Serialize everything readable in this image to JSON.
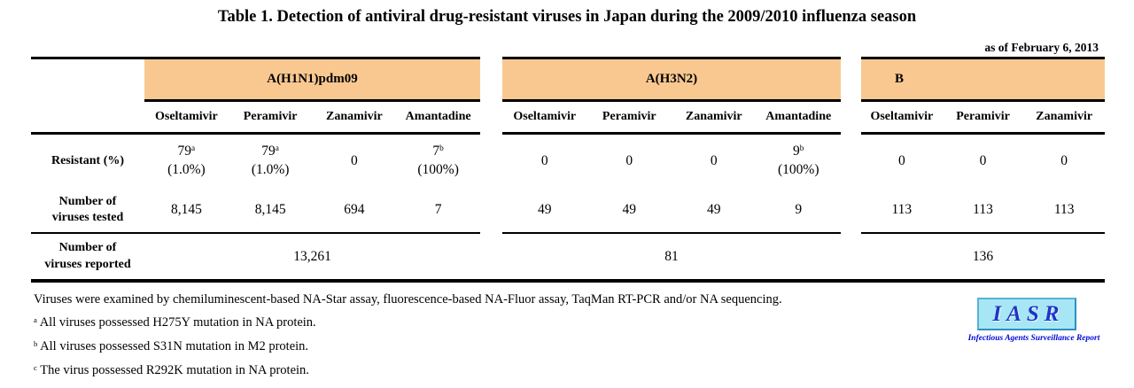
{
  "title": "Table 1. Detection of antiviral drug-resistant viruses in Japan during the 2009/2010 influenza season",
  "as_of": "as of February 6, 2013",
  "colors": {
    "band_orange": "#F9C890",
    "logo_box": "#A7E7F5",
    "logo_blue": "#2233C4"
  },
  "stub": {
    "resistant": "Resistant (%)",
    "tested_line1": "Number of",
    "tested_line2": "viruses tested",
    "reported_line1": "Number of",
    "reported_line2": "viruses reported"
  },
  "groups": [
    {
      "name": "A(H1N1)pdm09",
      "drugs": [
        "Oseltamivir",
        "Peramivir",
        "Zanamivir",
        "Amantadine"
      ],
      "resistant": [
        {
          "main": "79",
          "sup": "a",
          "pct": "(1.0%)"
        },
        {
          "main": "79",
          "sup": "a",
          "pct": "(1.0%)"
        },
        {
          "main": "0",
          "sup": "",
          "pct": ""
        },
        {
          "main": "7",
          "sup": "b",
          "pct": "(100%)"
        }
      ],
      "tested": [
        "8,145",
        "8,145",
        "694",
        "7"
      ],
      "reported": "13,261"
    },
    {
      "name": "A(H3N2)",
      "drugs": [
        "Oseltamivir",
        "Peramivir",
        "Zanamivir",
        "Amantadine"
      ],
      "resistant": [
        {
          "main": "0",
          "sup": "",
          "pct": ""
        },
        {
          "main": "0",
          "sup": "",
          "pct": ""
        },
        {
          "main": "0",
          "sup": "",
          "pct": ""
        },
        {
          "main": "9",
          "sup": "b",
          "pct": "(100%)"
        }
      ],
      "tested": [
        "49",
        "49",
        "49",
        "9"
      ],
      "reported": "81"
    },
    {
      "name": "B",
      "drugs": [
        "Oseltamivir",
        "Peramivir",
        "Zanamivir"
      ],
      "resistant": [
        {
          "main": "0",
          "sup": "",
          "pct": ""
        },
        {
          "main": "0",
          "sup": "",
          "pct": ""
        },
        {
          "main": "0",
          "sup": "",
          "pct": ""
        }
      ],
      "tested": [
        "113",
        "113",
        "113"
      ],
      "reported": "136"
    }
  ],
  "footnotes": {
    "method": "Viruses were examined by chemiluminescent-based NA-Star assay, fluorescence-based NA-Fluor assay, TaqMan RT-PCR and/or NA sequencing.",
    "a": {
      "sup": "a",
      "text": "All viruses possessed H275Y mutation in NA protein."
    },
    "b": {
      "sup": "b",
      "text": "All viruses possessed S31N mutation in M2 protein."
    },
    "c": {
      "sup": "c",
      "text": "The virus possessed R292K mutation in NA protein."
    }
  },
  "logo": {
    "acronym": "IASR",
    "full_name": "Infectious Agents Surveillance Report"
  }
}
